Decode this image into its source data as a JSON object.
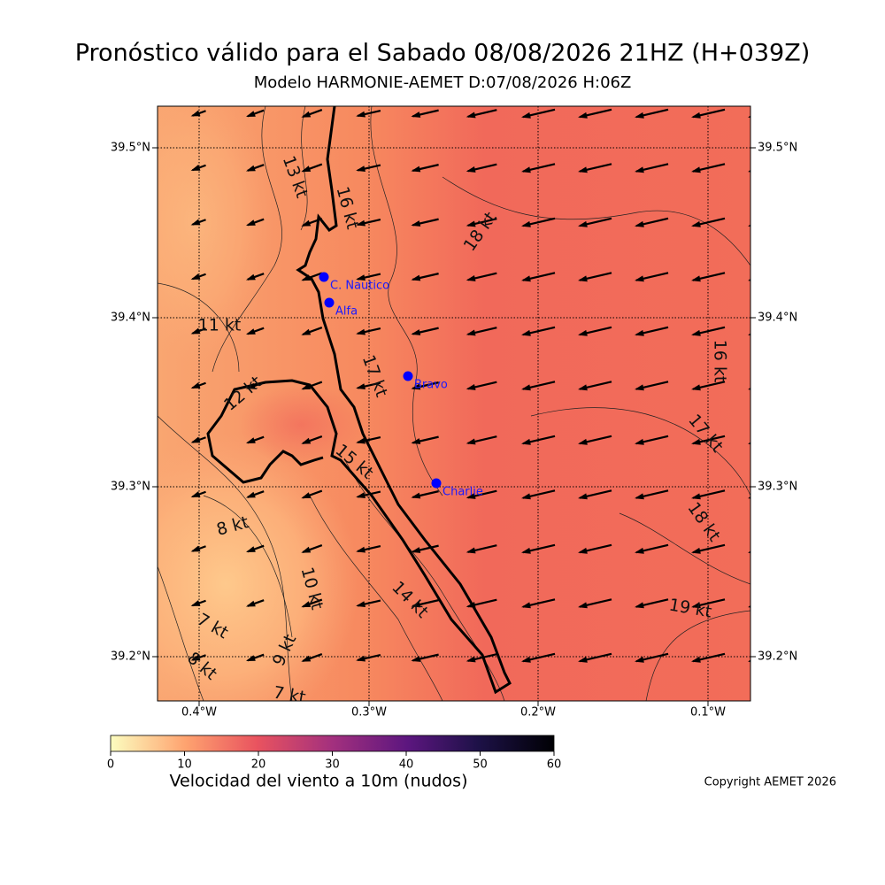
{
  "header": {
    "title": "Pronóstico válido para el Sabado 08/08/2026 21HZ (H+039Z)",
    "subtitle": "Modelo HARMONIE-AEMET D:07/08/2026 H:06Z"
  },
  "map": {
    "lat_labels": [
      "39.5°N",
      "39.4°N",
      "39.3°N",
      "39.2°N"
    ],
    "lon_labels": [
      "0.4°W",
      "0.3°W",
      "0.2°W",
      "0.1°W"
    ],
    "stations": [
      "C. Nautico",
      "Alfa",
      "Bravo",
      "Charlie"
    ],
    "contour_labels": [
      "13 kt",
      "16 kt",
      "18 kt",
      "11 kt",
      "17 kt",
      "12 kt",
      "15 kt",
      "8 kt",
      "10 kt",
      "14 kt",
      "7 kt",
      "9 kt",
      "8 kt",
      "7 kt",
      "16 kt",
      "17 kt",
      "18 kt",
      "19 kt"
    ]
  },
  "colorbar": {
    "ticks": [
      0,
      10,
      20,
      30,
      40,
      50,
      60
    ],
    "label": "Velocidad del viento a 10m (nudos)"
  },
  "footer": {
    "copyright": "Copyright AEMET 2026"
  }
}
